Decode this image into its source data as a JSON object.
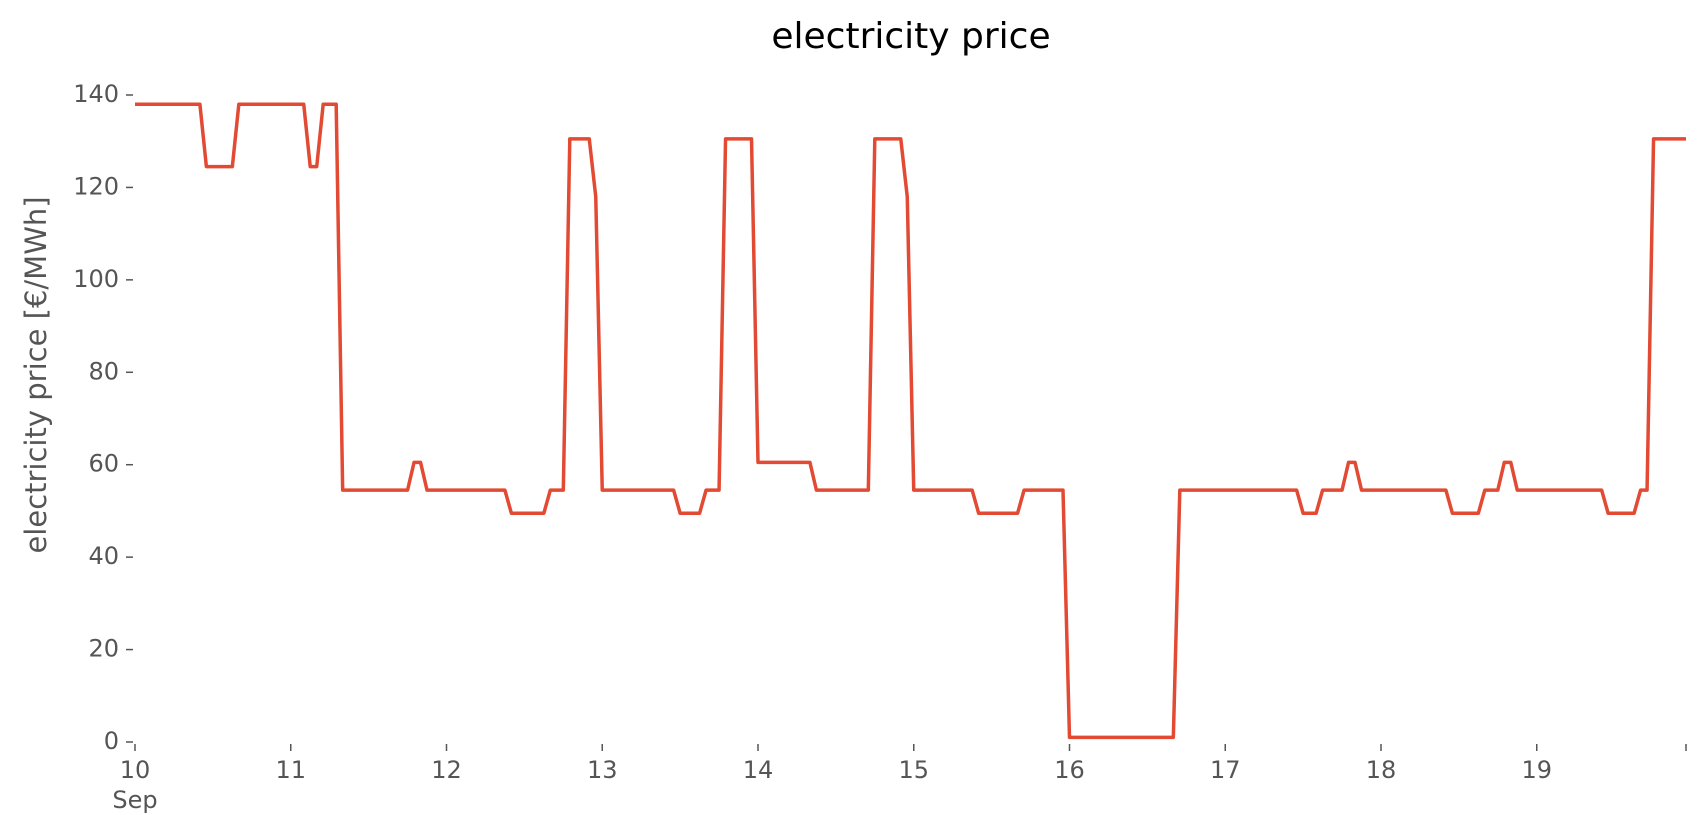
{
  "chart_data": {
    "type": "line",
    "title": "electricity price",
    "ylabel": "electricity price [€/MWh]",
    "x": [
      "2025-09-10 00:00",
      "2025-09-10 10:00",
      "2025-09-10 11:00",
      "2025-09-10 15:00",
      "2025-09-10 16:00",
      "2025-09-11 02:00",
      "2025-09-11 03:00",
      "2025-09-11 04:00",
      "2025-09-11 05:00",
      "2025-09-11 07:00",
      "2025-09-11 08:00",
      "2025-09-11 18:00",
      "2025-09-11 19:00",
      "2025-09-11 20:00",
      "2025-09-11 21:00",
      "2025-09-12 09:00",
      "2025-09-12 10:00",
      "2025-09-12 15:00",
      "2025-09-12 16:00",
      "2025-09-12 18:00",
      "2025-09-12 19:00",
      "2025-09-12 22:00",
      "2025-09-12 23:00",
      "2025-09-13 00:00",
      "2025-09-13 11:00",
      "2025-09-13 12:00",
      "2025-09-13 15:00",
      "2025-09-13 16:00",
      "2025-09-13 18:00",
      "2025-09-13 19:00",
      "2025-09-13 23:00",
      "2025-09-14 00:00",
      "2025-09-14 08:00",
      "2025-09-14 09:00",
      "2025-09-14 17:00",
      "2025-09-14 18:00",
      "2025-09-14 22:00",
      "2025-09-14 23:00",
      "2025-09-15 00:00",
      "2025-09-15 09:00",
      "2025-09-15 10:00",
      "2025-09-15 16:00",
      "2025-09-15 17:00",
      "2025-09-15 23:00",
      "2025-09-16 00:00",
      "2025-09-16 16:00",
      "2025-09-16 17:00",
      "2025-09-17 11:00",
      "2025-09-17 12:00",
      "2025-09-17 14:00",
      "2025-09-17 15:00",
      "2025-09-17 18:00",
      "2025-09-17 19:00",
      "2025-09-17 20:00",
      "2025-09-17 21:00",
      "2025-09-18 10:00",
      "2025-09-18 11:00",
      "2025-09-18 15:00",
      "2025-09-18 16:00",
      "2025-09-18 18:00",
      "2025-09-18 19:00",
      "2025-09-18 20:00",
      "2025-09-18 21:00",
      "2025-09-19 10:00",
      "2025-09-19 11:00",
      "2025-09-19 15:00",
      "2025-09-19 16:00",
      "2025-09-19 17:00",
      "2025-09-19 18:00",
      "2025-09-19 23:00"
    ],
    "series": [
      {
        "name": "electricity price",
        "color": "#E24A33",
        "values": [
          138,
          138,
          124.5,
          124.5,
          138,
          138,
          124.5,
          124.5,
          138,
          138,
          54.5,
          54.5,
          60.5,
          60.5,
          54.5,
          54.5,
          49.5,
          49.5,
          54.5,
          54.5,
          130.5,
          130.5,
          118,
          54.5,
          54.5,
          49.5,
          49.5,
          54.5,
          54.5,
          130.5,
          130.5,
          60.5,
          60.5,
          54.5,
          54.5,
          130.5,
          130.5,
          118,
          54.5,
          54.5,
          49.5,
          49.5,
          54.5,
          54.5,
          1,
          1,
          54.5,
          54.5,
          49.5,
          49.5,
          54.5,
          54.5,
          60.5,
          60.5,
          54.5,
          54.5,
          49.5,
          49.5,
          54.5,
          54.5,
          60.5,
          60.5,
          54.5,
          54.5,
          49.5,
          49.5,
          54.5,
          54.5,
          130.5,
          130.5
        ]
      }
    ],
    "xlim": [
      "2025-09-10 00:00",
      "2025-09-19 23:00"
    ],
    "xticks": [
      {
        "value": "2025-09-10 00:00",
        "label": "10\nSep\n2025"
      },
      {
        "value": "2025-09-11 00:00",
        "label": "11"
      },
      {
        "value": "2025-09-12 00:00",
        "label": "12"
      },
      {
        "value": "2025-09-13 00:00",
        "label": "13"
      },
      {
        "value": "2025-09-14 00:00",
        "label": "14"
      },
      {
        "value": "2025-09-15 00:00",
        "label": "15"
      },
      {
        "value": "2025-09-16 00:00",
        "label": "16"
      },
      {
        "value": "2025-09-17 00:00",
        "label": "17"
      },
      {
        "value": "2025-09-18 00:00",
        "label": "18"
      },
      {
        "value": "2025-09-19 00:00",
        "label": "19"
      },
      {
        "value": "2025-09-19 23:00"
      }
    ],
    "ylim": [
      0,
      140
    ],
    "yticks": [
      0,
      20,
      40,
      60,
      80,
      100,
      120,
      140
    ],
    "grid": false
  }
}
